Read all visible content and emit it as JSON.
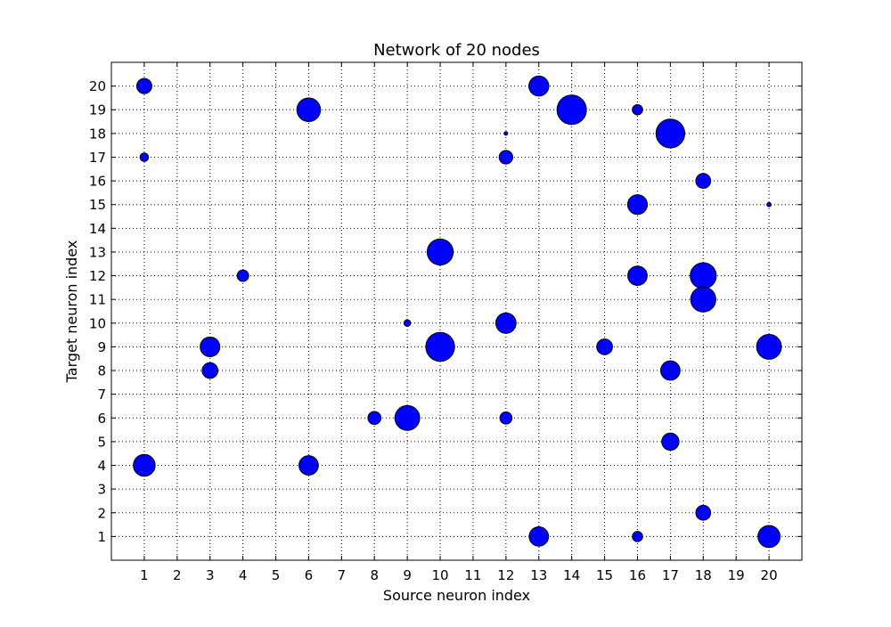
{
  "chart_data": {
    "type": "scatter",
    "title": "Network of 20 nodes",
    "xlabel": "Source neuron index",
    "ylabel": "Target neuron index",
    "xlim": [
      0,
      21
    ],
    "ylim": [
      0,
      21
    ],
    "x_ticks": [
      1,
      2,
      3,
      4,
      5,
      6,
      7,
      8,
      9,
      10,
      11,
      12,
      13,
      14,
      15,
      16,
      17,
      18,
      19,
      20
    ],
    "y_ticks": [
      1,
      2,
      3,
      4,
      5,
      6,
      7,
      8,
      9,
      10,
      11,
      12,
      13,
      14,
      15,
      16,
      17,
      18,
      19,
      20
    ],
    "grid": true,
    "grid_style": "dotted",
    "marker_color": "#0000ff",
    "marker_edge_color": "#000000",
    "points": [
      {
        "x": 1,
        "y": 20,
        "size": 0.5
      },
      {
        "x": 1,
        "y": 17,
        "size": 0.28
      },
      {
        "x": 1,
        "y": 4,
        "size": 0.72
      },
      {
        "x": 3,
        "y": 9,
        "size": 0.65
      },
      {
        "x": 3,
        "y": 8,
        "size": 0.52
      },
      {
        "x": 4,
        "y": 12,
        "size": 0.38
      },
      {
        "x": 6,
        "y": 19,
        "size": 0.78
      },
      {
        "x": 6,
        "y": 4,
        "size": 0.64
      },
      {
        "x": 8,
        "y": 6,
        "size": 0.43
      },
      {
        "x": 9,
        "y": 10,
        "size": 0.22
      },
      {
        "x": 9,
        "y": 6,
        "size": 0.82
      },
      {
        "x": 10,
        "y": 13,
        "size": 0.86
      },
      {
        "x": 10,
        "y": 9,
        "size": 0.95
      },
      {
        "x": 12,
        "y": 18,
        "size": 0.08
      },
      {
        "x": 12,
        "y": 17,
        "size": 0.45
      },
      {
        "x": 12,
        "y": 10,
        "size": 0.67
      },
      {
        "x": 12,
        "y": 6,
        "size": 0.4
      },
      {
        "x": 13,
        "y": 20,
        "size": 0.66
      },
      {
        "x": 13,
        "y": 1,
        "size": 0.64
      },
      {
        "x": 14,
        "y": 19,
        "size": 0.97
      },
      {
        "x": 15,
        "y": 9,
        "size": 0.52
      },
      {
        "x": 16,
        "y": 19,
        "size": 0.34
      },
      {
        "x": 16,
        "y": 15,
        "size": 0.65
      },
      {
        "x": 16,
        "y": 12,
        "size": 0.64
      },
      {
        "x": 16,
        "y": 1,
        "size": 0.34
      },
      {
        "x": 17,
        "y": 18,
        "size": 0.95
      },
      {
        "x": 17,
        "y": 8,
        "size": 0.64
      },
      {
        "x": 17,
        "y": 5,
        "size": 0.57
      },
      {
        "x": 18,
        "y": 16,
        "size": 0.49
      },
      {
        "x": 18,
        "y": 12,
        "size": 0.86
      },
      {
        "x": 18,
        "y": 11,
        "size": 0.83
      },
      {
        "x": 18,
        "y": 2,
        "size": 0.49
      },
      {
        "x": 20,
        "y": 15,
        "size": 0.14
      },
      {
        "x": 20,
        "y": 9,
        "size": 0.82
      },
      {
        "x": 20,
        "y": 1,
        "size": 0.73
      }
    ]
  }
}
